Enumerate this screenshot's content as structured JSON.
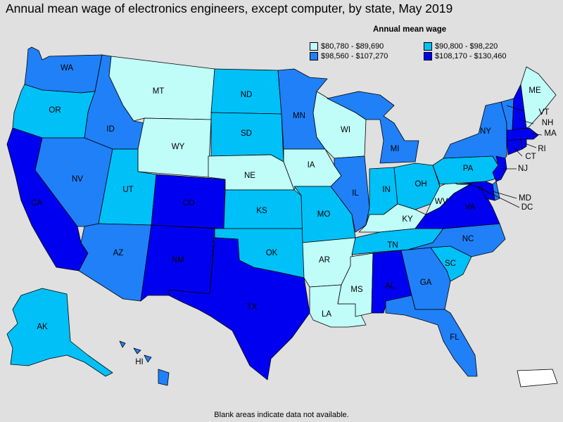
{
  "title": "Annual mean wage of electronics engineers, except computer, by state, May 2019",
  "footnote": "Blank areas indicate data not available.",
  "legend": {
    "title": "Annual mean wage",
    "items": [
      {
        "label": "$80,780 - $89,690",
        "color": "#c0fcf8"
      },
      {
        "label": "$90,800 - $98,220",
        "color": "#00c0f8"
      },
      {
        "label": "$98,560 - $107,270",
        "color": "#2080f8"
      },
      {
        "label": "$108,170 - $130,460",
        "color": "#0000f0"
      }
    ]
  },
  "colors": {
    "nodata": "#ffffff",
    "background": "#e0e0e0"
  },
  "states": {
    "WA": 2,
    "OR": 1,
    "CA": 3,
    "ID": 2,
    "NV": 2,
    "MT": 0,
    "WY": 0,
    "UT": 1,
    "AZ": 2,
    "CO": 3,
    "NM": 3,
    "ND": 1,
    "SD": 1,
    "NE": 0,
    "KS": 1,
    "OK": 1,
    "TX": 3,
    "MN": 2,
    "IA": 0,
    "MO": 1,
    "AR": 0,
    "LA": 0,
    "WI": 0,
    "IL": 2,
    "MI": 2,
    "IN": 1,
    "OH": 1,
    "KY": 0,
    "TN": 1,
    "MS": 0,
    "AL": 3,
    "GA": 2,
    "FL": 2,
    "SC": 1,
    "NC": 2,
    "VA": 3,
    "WV": 0,
    "PA": 1,
    "NY": 2,
    "VT": 2,
    "NH": 3,
    "ME": 0,
    "MA": 3,
    "RI": 3,
    "CT": 3,
    "NJ": 3,
    "DE": 2,
    "MD": 3,
    "DC": 3,
    "AK": 1,
    "HI": 2,
    "PR": -1
  },
  "labels": [
    "WA",
    "OR",
    "CA",
    "ID",
    "NV",
    "MT",
    "WY",
    "UT",
    "AZ",
    "CO",
    "NM",
    "ND",
    "SD",
    "NE",
    "KS",
    "OK",
    "TX",
    "MN",
    "IA",
    "MO",
    "AR",
    "LA",
    "WI",
    "IL",
    "MI",
    "IN",
    "OH",
    "KY",
    "TN",
    "MS",
    "AL",
    "GA",
    "FL",
    "SC",
    "NC",
    "VA",
    "WV",
    "PA",
    "NY",
    "ME",
    "VT",
    "NH",
    "MA",
    "RI",
    "CT",
    "NJ",
    "MD",
    "DC",
    "AK",
    "HI"
  ]
}
